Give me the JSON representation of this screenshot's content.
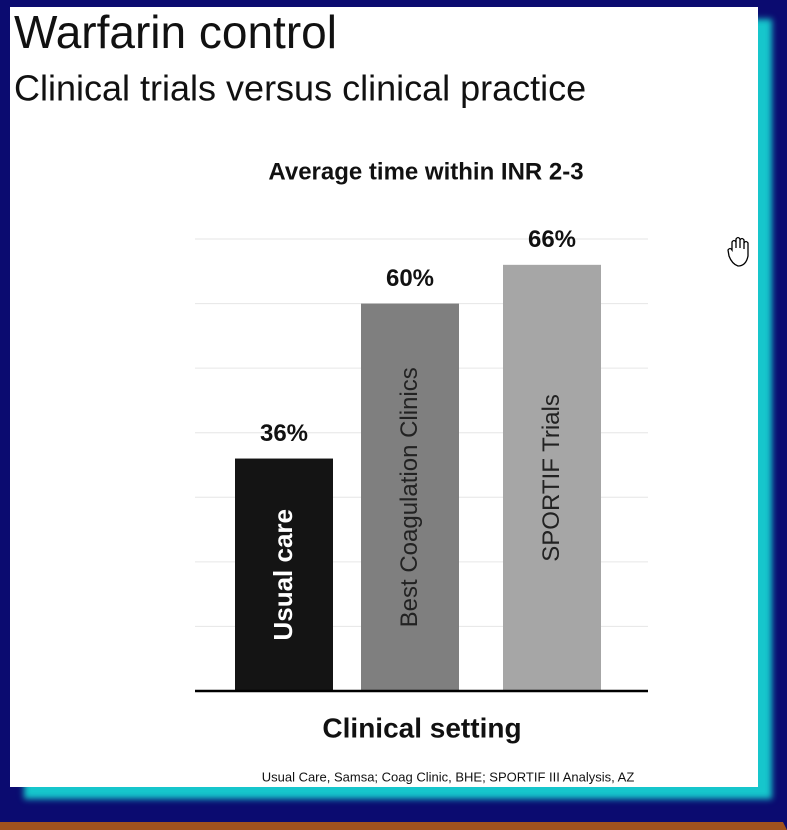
{
  "slide": {
    "title": "Warfarin control",
    "subtitle": "Clinical trials versus clinical practice",
    "source": "Usual Care, Samsa; Coag Clinic, BHE; SPORTIF III Analysis, AZ"
  },
  "chart_data": {
    "type": "bar",
    "title": "Average time within INR 2-3",
    "x_label": "Clinical setting",
    "categories": [
      "Usual care",
      "Best Coagulation Clinics",
      "SPORTIF  Trials"
    ],
    "values": [
      36,
      60,
      66
    ],
    "value_labels": [
      "36%",
      "60%",
      "66%"
    ],
    "colors": [
      "#141414",
      "#7f7f7f",
      "#a6a6a6"
    ],
    "ylim": [
      0,
      70
    ],
    "yticks": [
      10,
      20,
      30,
      40,
      50,
      60,
      70
    ],
    "grid": true
  }
}
